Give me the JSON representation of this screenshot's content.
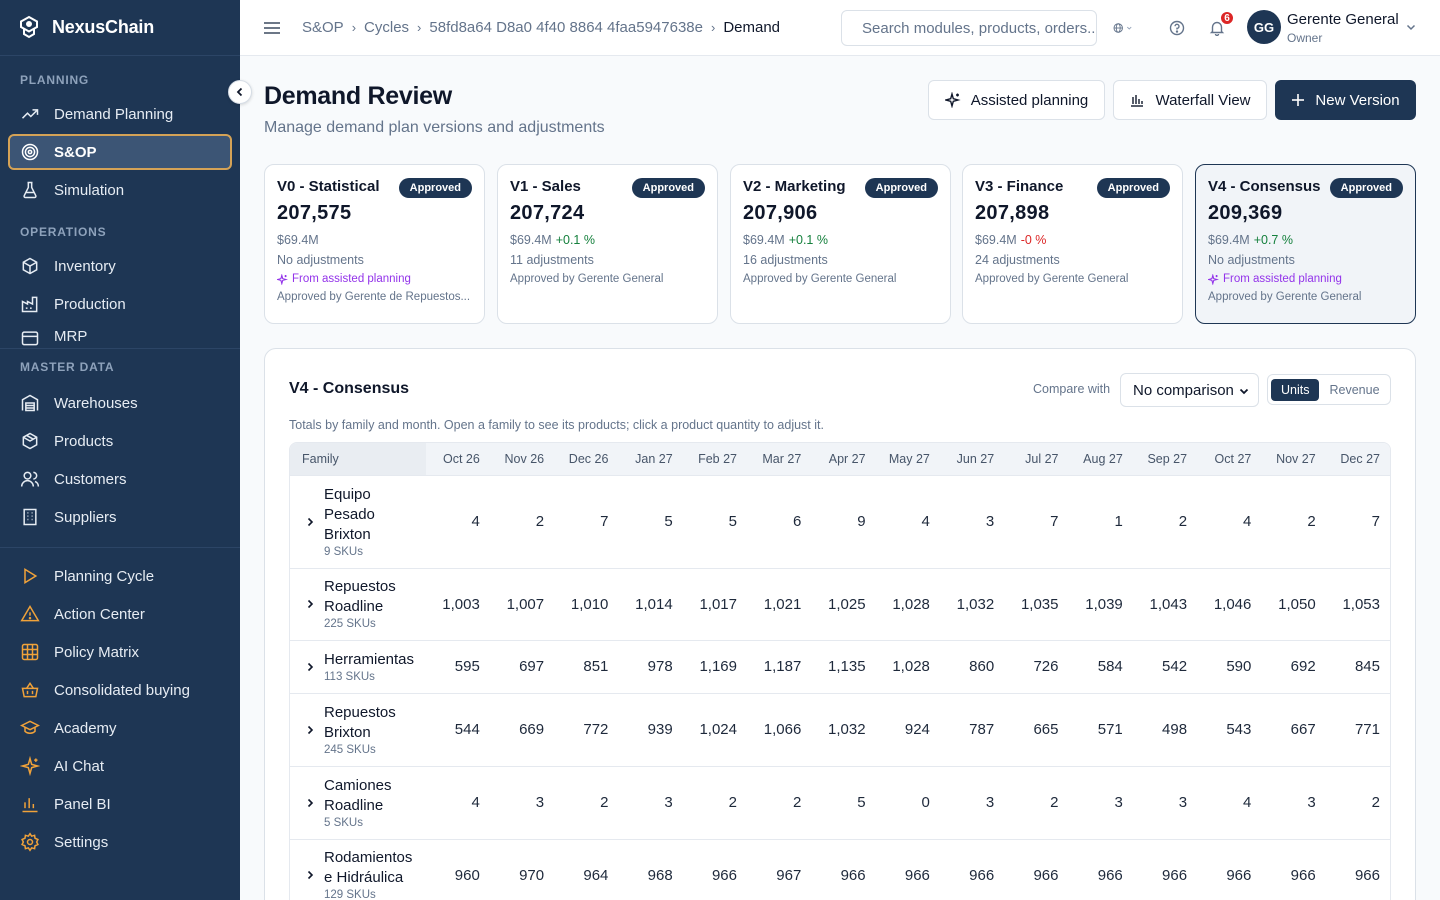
{
  "app": {
    "name": "NexusChain"
  },
  "sidebar": {
    "sections": [
      {
        "label": "PLANNING",
        "items": [
          {
            "label": "Demand Planning",
            "icon": "trend-icon"
          },
          {
            "label": "S&OP",
            "icon": "target-icon",
            "active": true
          },
          {
            "label": "Simulation",
            "icon": "flask-icon"
          }
        ]
      },
      {
        "label": "OPERATIONS",
        "items": [
          {
            "label": "Inventory",
            "icon": "box-icon"
          },
          {
            "label": "Production",
            "icon": "factory-icon"
          },
          {
            "label": "MRP",
            "icon": "mrp-icon"
          }
        ]
      },
      {
        "label": "MASTER DATA",
        "items": [
          {
            "label": "Warehouses",
            "icon": "warehouse-icon"
          },
          {
            "label": "Products",
            "icon": "package-icon"
          },
          {
            "label": "Customers",
            "icon": "users-icon"
          },
          {
            "label": "Suppliers",
            "icon": "building-icon"
          }
        ]
      }
    ],
    "bottom_items": [
      {
        "label": "Planning Cycle",
        "icon": "play-icon"
      },
      {
        "label": "Action Center",
        "icon": "warning-icon"
      },
      {
        "label": "Policy Matrix",
        "icon": "grid-icon"
      },
      {
        "label": "Consolidated buying",
        "icon": "basket-icon"
      },
      {
        "label": "Academy",
        "icon": "graduation-icon"
      },
      {
        "label": "AI Chat",
        "icon": "sparkle-icon"
      },
      {
        "label": "Panel BI",
        "icon": "bar-chart-icon"
      },
      {
        "label": "Settings",
        "icon": "gear-icon"
      }
    ]
  },
  "header": {
    "breadcrumb": [
      "S&OP",
      "Cycles",
      "58fd8a64 D8a0 4f40 8864 4faa5947638e",
      "Demand"
    ],
    "search_placeholder": "Search modules, products, orders...",
    "notifications": "6",
    "user": {
      "initials": "GG",
      "name": "Gerente General",
      "role": "Owner"
    }
  },
  "page": {
    "title": "Demand Review",
    "subtitle": "Manage demand plan versions and adjustments",
    "buttons": {
      "assisted": "Assisted planning",
      "waterfall": "Waterfall View",
      "new_version": "New Version"
    }
  },
  "versions": [
    {
      "name": "V0 - Statistical",
      "status": "Approved",
      "total": "207,575",
      "revenue": "$69.4M",
      "delta": "",
      "delta_sign": "",
      "adjustments": "No adjustments",
      "assisted": "From assisted planning",
      "approved_by": "Approved by Gerente de Repuestos..."
    },
    {
      "name": "V1 - Sales",
      "status": "Approved",
      "total": "207,724",
      "revenue": "$69.4M",
      "delta": "+0.1 %",
      "delta_sign": "pos",
      "adjustments": "11 adjustments",
      "assisted": "",
      "approved_by": "Approved by Gerente General"
    },
    {
      "name": "V2 - Marketing",
      "status": "Approved",
      "total": "207,906",
      "revenue": "$69.4M",
      "delta": "+0.1 %",
      "delta_sign": "pos",
      "adjustments": "16 adjustments",
      "assisted": "",
      "approved_by": "Approved by Gerente General"
    },
    {
      "name": "V3 - Finance",
      "status": "Approved",
      "total": "207,898",
      "revenue": "$69.4M",
      "delta": "-0 %",
      "delta_sign": "neg",
      "adjustments": "24 adjustments",
      "assisted": "",
      "approved_by": "Approved by Gerente General"
    },
    {
      "name": "V4 - Consensus",
      "status": "Approved",
      "total": "209,369",
      "revenue": "$69.4M",
      "delta": "+0.7 %",
      "delta_sign": "pos",
      "adjustments": "No adjustments",
      "assisted": "From assisted planning",
      "approved_by": "Approved by Gerente General",
      "selected": true
    }
  ],
  "panel": {
    "title": "V4 - Consensus",
    "description": "Totals by family and month. Open a family to see its products; click a product quantity to adjust it.",
    "compare_label": "Compare with",
    "compare_value": "No comparison",
    "toggle": {
      "units": "Units",
      "revenue": "Revenue"
    }
  },
  "table": {
    "family_header": "Family",
    "months": [
      "Oct 26",
      "Nov 26",
      "Dec 26",
      "Jan 27",
      "Feb 27",
      "Mar 27",
      "Apr 27",
      "May 27",
      "Jun 27",
      "Jul 27",
      "Aug 27",
      "Sep 27",
      "Oct 27",
      "Nov 27",
      "Dec 27"
    ],
    "rows": [
      {
        "family": "Equipo Pesado Brixton",
        "skus": "9 SKUs",
        "values": [
          "4",
          "2",
          "7",
          "5",
          "5",
          "6",
          "9",
          "4",
          "3",
          "7",
          "1",
          "2",
          "4",
          "2",
          "7"
        ]
      },
      {
        "family": "Repuestos Roadline",
        "skus": "225 SKUs",
        "values": [
          "1,003",
          "1,007",
          "1,010",
          "1,014",
          "1,017",
          "1,021",
          "1,025",
          "1,028",
          "1,032",
          "1,035",
          "1,039",
          "1,043",
          "1,046",
          "1,050",
          "1,053"
        ]
      },
      {
        "family": "Herramientas",
        "skus": "113 SKUs",
        "values": [
          "595",
          "697",
          "851",
          "978",
          "1,169",
          "1,187",
          "1,135",
          "1,028",
          "860",
          "726",
          "584",
          "542",
          "590",
          "692",
          "845"
        ]
      },
      {
        "family": "Repuestos Brixton",
        "skus": "245 SKUs",
        "values": [
          "544",
          "669",
          "772",
          "939",
          "1,024",
          "1,066",
          "1,032",
          "924",
          "787",
          "665",
          "571",
          "498",
          "543",
          "667",
          "771"
        ]
      },
      {
        "family": "Camiones Roadline",
        "skus": "5 SKUs",
        "values": [
          "4",
          "3",
          "2",
          "3",
          "2",
          "2",
          "5",
          "0",
          "3",
          "2",
          "3",
          "3",
          "4",
          "3",
          "2"
        ]
      },
      {
        "family": "Rodamientos e Hidráulica",
        "skus": "129 SKUs",
        "values": [
          "960",
          "970",
          "964",
          "968",
          "966",
          "967",
          "966",
          "966",
          "966",
          "966",
          "966",
          "966",
          "966",
          "966",
          "966"
        ]
      }
    ]
  }
}
